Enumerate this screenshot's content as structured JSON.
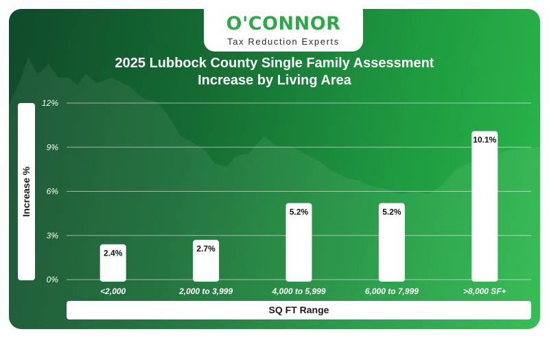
{
  "brand": {
    "name": "O'CONNOR",
    "tagline": "Tax Reduction Experts"
  },
  "colors": {
    "bg_dark": "#0f4a2a",
    "bg_light": "#2ab84a",
    "brand_green": "#2fa84a",
    "bar": "#ffffff"
  },
  "chart_data": {
    "type": "bar",
    "title_lines": [
      "2025 Lubbock County Single Family Assessment",
      "Increase by Living Area"
    ],
    "xlabel": "SQ FT Range",
    "ylabel": "Increase %",
    "categories": [
      "<2,000",
      "2,000 to 3,999",
      "4,000 to 5,999",
      "6,000 to 7,999",
      ">8,000 SF+"
    ],
    "values": [
      2.4,
      2.7,
      5.2,
      5.2,
      10.1
    ],
    "data_labels": [
      "2.4%",
      "2.7%",
      "5.2%",
      "5.2%",
      "10.1%"
    ],
    "ylim": [
      0,
      12
    ],
    "yticks": [
      0,
      3,
      6,
      9,
      12
    ],
    "ytick_labels": [
      "0%",
      "3%",
      "6%",
      "9%",
      "12%"
    ],
    "grid": true,
    "legend": "none"
  }
}
